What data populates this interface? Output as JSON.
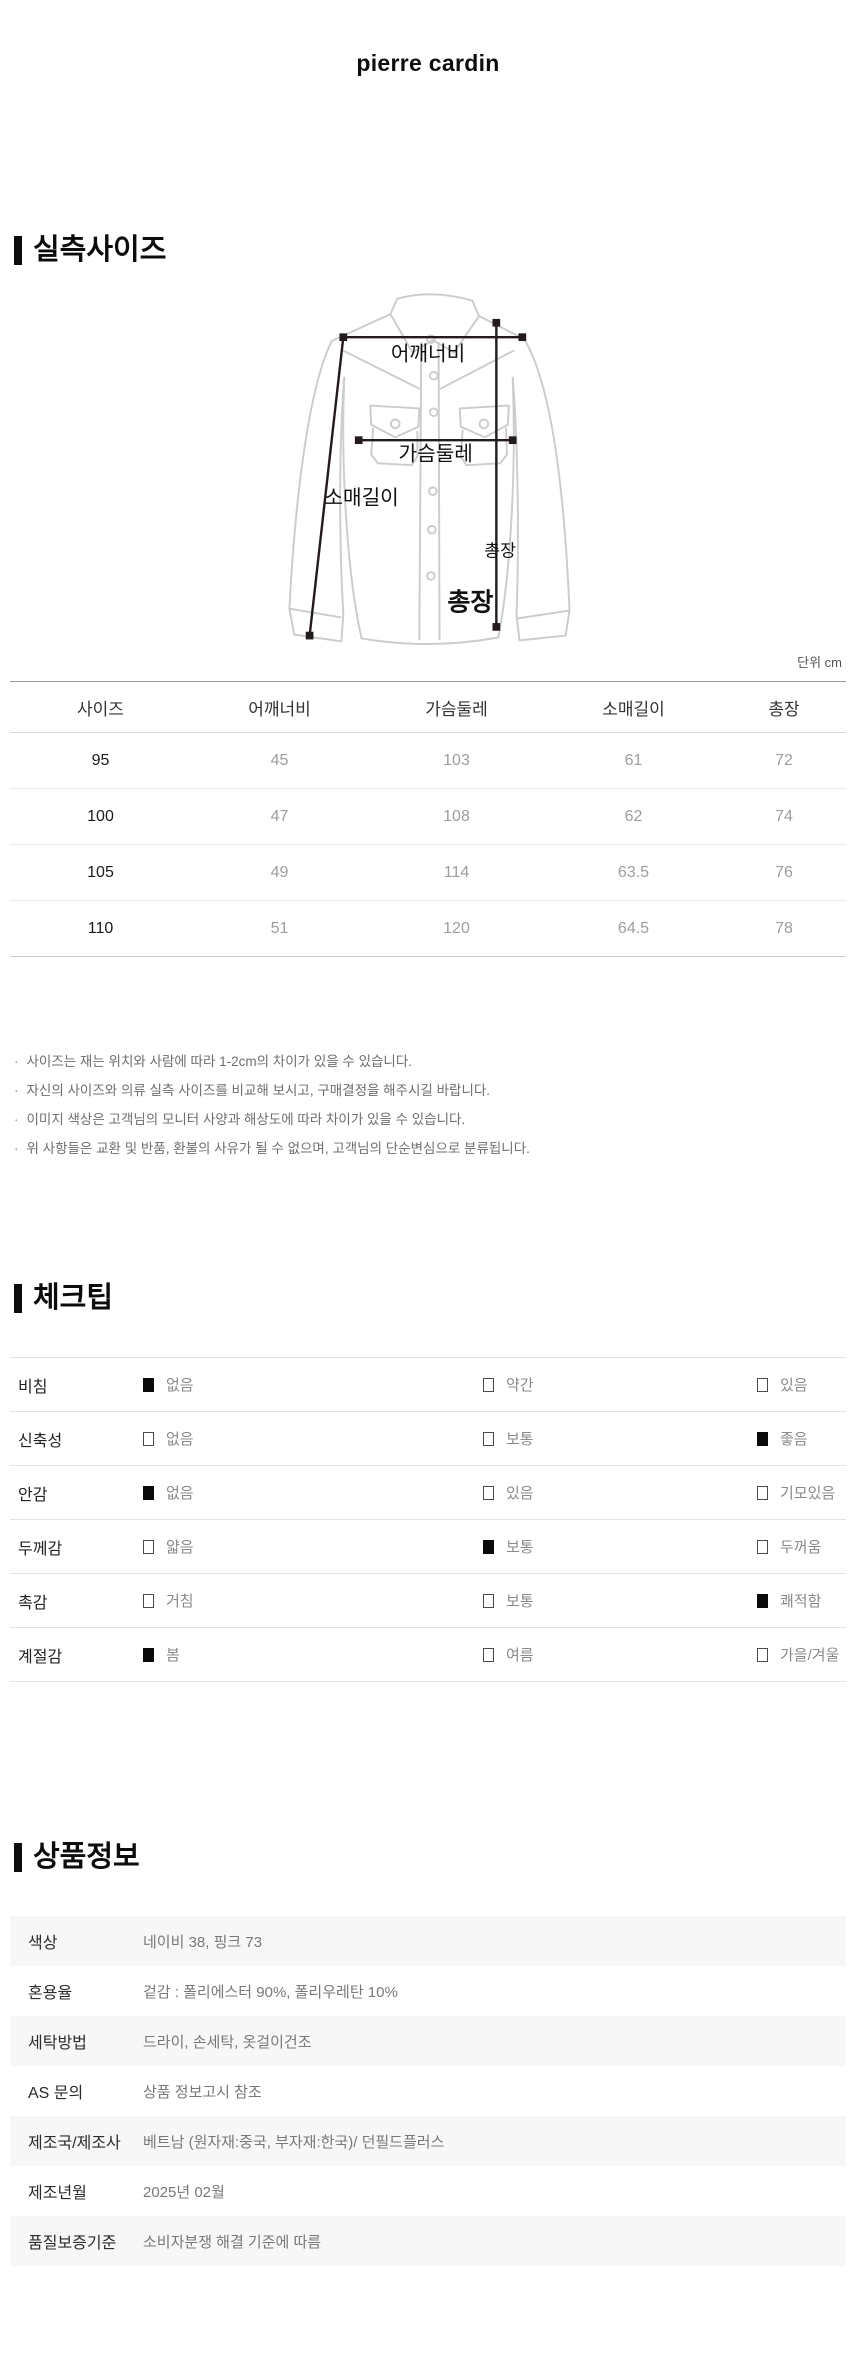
{
  "brand": {
    "logo": "pierre cardin"
  },
  "size_section": {
    "title": "실측사이즈",
    "unit_label": "단위 cm",
    "diagram_labels": {
      "shoulder": "어깨너비",
      "chest": "가슴둘레",
      "sleeve": "소매길이",
      "length_small": "총장",
      "length_large": "총장"
    },
    "table": {
      "headers": [
        "사이즈",
        "어깨너비",
        "가슴둘레",
        "소매길이",
        "총장"
      ],
      "rows": [
        [
          "95",
          "45",
          "103",
          "61",
          "72"
        ],
        [
          "100",
          "47",
          "108",
          "62",
          "74"
        ],
        [
          "105",
          "49",
          "114",
          "63.5",
          "76"
        ],
        [
          "110",
          "51",
          "120",
          "64.5",
          "78"
        ]
      ]
    },
    "notes": [
      "사이즈는 재는 위치와 사람에 따라 1-2cm의 차이가 있을 수 있습니다.",
      "자신의 사이즈와 의류 실측 사이즈를 비교해 보시고, 구매결정을 해주시길 바랍니다.",
      "이미지 색상은 고객님의 모니터 사양과 해상도에 따라 차이가 있을 수 있습니다.",
      "위 사항들은 교환 및 반품, 환불의 사유가 될 수 없으며, 고객님의 단순변심으로 분류됩니다."
    ]
  },
  "check_section": {
    "title": "체크팁",
    "rows": [
      {
        "label": "비침",
        "options": [
          {
            "text": "없음",
            "checked": true
          },
          {
            "text": "약간",
            "checked": false
          },
          {
            "text": "있음",
            "checked": false
          }
        ]
      },
      {
        "label": "신축성",
        "options": [
          {
            "text": "없음",
            "checked": false
          },
          {
            "text": "보통",
            "checked": false
          },
          {
            "text": "좋음",
            "checked": true
          }
        ]
      },
      {
        "label": "안감",
        "options": [
          {
            "text": "없음",
            "checked": true
          },
          {
            "text": "있음",
            "checked": false
          },
          {
            "text": "기모있음",
            "checked": false
          }
        ]
      },
      {
        "label": "두께감",
        "options": [
          {
            "text": "얇음",
            "checked": false
          },
          {
            "text": "보통",
            "checked": true
          },
          {
            "text": "두꺼움",
            "checked": false
          }
        ]
      },
      {
        "label": "촉감",
        "options": [
          {
            "text": "거침",
            "checked": false
          },
          {
            "text": "보통",
            "checked": false
          },
          {
            "text": "쾌적함",
            "checked": true
          }
        ]
      },
      {
        "label": "계절감",
        "options": [
          {
            "text": "봄",
            "checked": true
          },
          {
            "text": "여름",
            "checked": false
          },
          {
            "text": "가을/겨울",
            "checked": false
          }
        ]
      }
    ]
  },
  "product_section": {
    "title": "상품정보",
    "rows": [
      {
        "label": "색상",
        "value": "네이비 38, 핑크 73"
      },
      {
        "label": "혼용율",
        "value": "겉감 : 폴리에스터 90%, 폴리우레탄 10%"
      },
      {
        "label": "세탁방법",
        "value": "드라이, 손세탁, 옷걸이건조"
      },
      {
        "label": "AS 문의",
        "value": "상품 정보고시 참조"
      },
      {
        "label": "제조국/제조사",
        "value": "베트남 (원자재:중국, 부자재:한국)/ 던필드플러스"
      },
      {
        "label": "제조년월",
        "value": "2025년 02월"
      },
      {
        "label": "품질보증기준",
        "value": "소비자분쟁 해결 기준에 따름"
      }
    ]
  },
  "colors": {
    "text_primary": "#111111",
    "text_secondary": "#9d9d9d",
    "divider": "#e4e4e4",
    "table_top_border": "#999999",
    "row_alt_bg": "#f7f7f7",
    "diagram_outline": "#cccccc",
    "measure_line": "#241c1c"
  }
}
